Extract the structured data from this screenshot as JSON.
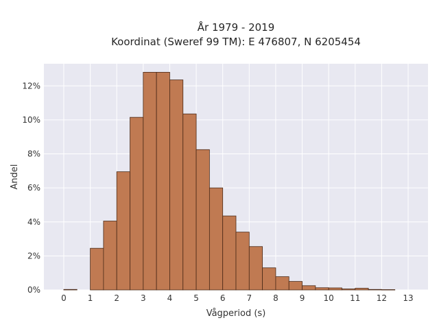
{
  "chart_data": {
    "type": "bar",
    "title_line1": "År 1979 - 2019",
    "title_line2": "Koordinat (Sweref 99 TM): E 476807, N 6205454",
    "xlabel": "Vågperiod (s)",
    "ylabel": "Andel",
    "xlim": [
      -0.75,
      13.75
    ],
    "ylim": [
      0,
      13.3
    ],
    "bin_width": 0.5,
    "x_ticks": [
      0,
      1,
      2,
      3,
      4,
      5,
      6,
      7,
      8,
      9,
      10,
      11,
      12,
      13
    ],
    "y_ticks": [
      0,
      2,
      4,
      6,
      8,
      10,
      12
    ],
    "y_tick_labels": [
      "0%",
      "2%",
      "4%",
      "6%",
      "8%",
      "10%",
      "12%"
    ],
    "grid": true,
    "colors": {
      "bar": "#c07a52",
      "bar_edge": "#4a2a18",
      "plot_background": "#e8e8f1",
      "grid": "#ffffff"
    },
    "bins_start": [
      0,
      1,
      1.5,
      2,
      2.5,
      3,
      3.5,
      4,
      4.5,
      5,
      5.5,
      6,
      6.5,
      7,
      7.5,
      8,
      8.5,
      9,
      9.5,
      10,
      10.5,
      11,
      11.5,
      12
    ],
    "values": [
      0.03,
      2.45,
      4.05,
      6.95,
      10.15,
      12.8,
      12.8,
      12.35,
      10.35,
      8.25,
      6.0,
      4.35,
      3.4,
      2.55,
      1.3,
      0.78,
      0.5,
      0.25,
      0.13,
      0.12,
      0.06,
      0.1,
      0.03,
      0.02
    ]
  }
}
